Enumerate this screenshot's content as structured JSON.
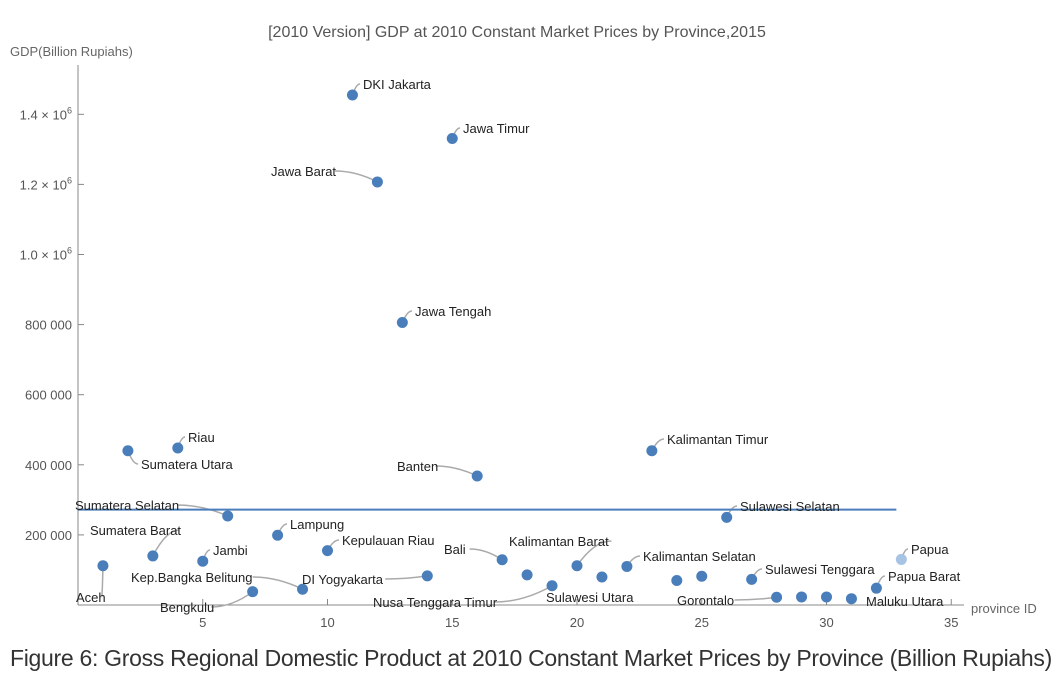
{
  "caption": "Figure 6: Gross Regional Domestic Product at 2010 Constant Market Prices by Province (Billion Rupiahs)",
  "colors": {
    "point": "#4a7ebb",
    "line": "#4a7ebb",
    "axis": "#888888",
    "text": "#555555",
    "label": "#222222",
    "leader": "#aaaaaa"
  },
  "chart_data": {
    "type": "scatter",
    "title": "[2010 Version] GDP at 2010 Constant Market Prices by Province,2015",
    "xlabel": "province ID",
    "ylabel": "GDP(Billion Rupiahs)",
    "xlim": [
      0,
      35.5
    ],
    "ylim": [
      0,
      1550000
    ],
    "x_ticks": [
      5,
      10,
      15,
      20,
      25,
      30,
      35
    ],
    "x_tick_labels": [
      "5",
      "10",
      "15",
      "20",
      "25",
      "30",
      "35"
    ],
    "y_ticks": [
      200000,
      400000,
      600000,
      800000,
      1000000,
      1200000,
      1400000
    ],
    "y_tick_labels": [
      {
        "text": "200 000"
      },
      {
        "text": "400 000"
      },
      {
        "text": "600 000"
      },
      {
        "text": "800 000"
      },
      {
        "text": "1.0 × 10",
        "exp": "6"
      },
      {
        "text": "1.2 × 10",
        "exp": "6"
      },
      {
        "text": "1.4 × 10",
        "exp": "6"
      }
    ],
    "mean_line": 272000,
    "points": [
      {
        "id": 1,
        "name": "Aceh",
        "y": 112000
      },
      {
        "id": 2,
        "name": "Sumatera Utara",
        "y": 440000
      },
      {
        "id": 3,
        "name": "Sumatera Barat",
        "y": 140000
      },
      {
        "id": 4,
        "name": "Riau",
        "y": 448000
      },
      {
        "id": 5,
        "name": "Jambi",
        "y": 125000
      },
      {
        "id": 6,
        "name": "Sumatera Selatan",
        "y": 254000
      },
      {
        "id": 7,
        "name": "Bengkulu",
        "y": 38000
      },
      {
        "id": 8,
        "name": "Lampung",
        "y": 199000
      },
      {
        "id": 9,
        "name": "Kep.Bangka Belitung",
        "y": 45000
      },
      {
        "id": 10,
        "name": "Kepulauan Riau",
        "y": 155000
      },
      {
        "id": 11,
        "name": "DKI Jakarta",
        "y": 1455000
      },
      {
        "id": 12,
        "name": "Jawa Barat",
        "y": 1207000
      },
      {
        "id": 13,
        "name": "Jawa Tengah",
        "y": 806000
      },
      {
        "id": 14,
        "name": "DI Yogyakarta",
        "y": 83000
      },
      {
        "id": 15,
        "name": "Jawa Timur",
        "y": 1331000
      },
      {
        "id": 16,
        "name": "Banten",
        "y": 368000
      },
      {
        "id": 17,
        "name": "Bali",
        "y": 129000
      },
      {
        "id": 18,
        "name": "",
        "y": 86000
      },
      {
        "id": 19,
        "name": "Nusa Tenggara Timur",
        "y": 55000
      },
      {
        "id": 20,
        "name": "Kalimantan Barat",
        "y": 112000
      },
      {
        "id": 21,
        "name": "",
        "y": 80000
      },
      {
        "id": 22,
        "name": "Kalimantan Selatan",
        "y": 110000
      },
      {
        "id": 23,
        "name": "Kalimantan Timur",
        "y": 440000
      },
      {
        "id": 24,
        "name": "",
        "y": 70000
      },
      {
        "id": 25,
        "name": "",
        "y": 82000
      },
      {
        "id": 26,
        "name": "Sulawesi Selatan",
        "y": 250000
      },
      {
        "id": 27,
        "name": "Sulawesi Tenggara",
        "y": 73000
      },
      {
        "id": 28,
        "name": "Gorontalo",
        "y": 22000
      },
      {
        "id": 29,
        "name": "",
        "y": 23000
      },
      {
        "id": 30,
        "name": "",
        "y": 23000
      },
      {
        "id": 31,
        "name": "Maluku Utara",
        "y": 18000
      },
      {
        "id": 32,
        "name": "Papua Barat",
        "y": 48000
      },
      {
        "id": 33,
        "name": "Papua",
        "y": 130000
      }
    ],
    "extra_labels": [
      {
        "text": "Sulawesi Utara",
        "near_id": 20
      }
    ]
  }
}
